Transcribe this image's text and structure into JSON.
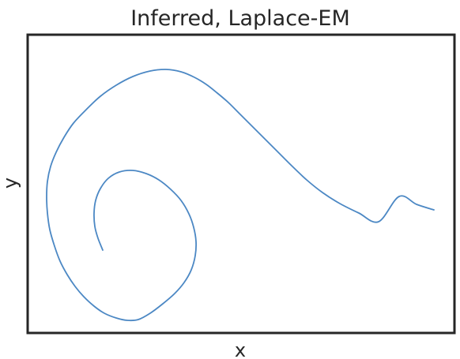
{
  "chart_data": {
    "type": "line",
    "title": "Inferred, Laplace-EM",
    "xlabel": "x",
    "ylabel": "y",
    "xlim": [
      0,
      540
    ],
    "ylim": [
      0,
      378
    ],
    "grid": false,
    "legend": false,
    "colors": {
      "line": "#4c88c4",
      "frame": "#262626",
      "background": "#ffffff"
    },
    "series": [
      {
        "x": [
          95,
          89,
          85,
          84,
          86,
          92,
          102,
          116,
          133,
          150,
          166,
          181,
          194,
          204,
          210,
          213,
          212,
          207,
          198,
          186,
          171,
          155,
          140,
          126,
          112,
          97,
          84,
          71,
          60,
          50,
          41,
          34,
          28,
          25,
          24,
          25,
          29,
          36,
          46,
          58,
          74,
          92,
          112,
          133,
          155,
          175,
          194,
          211,
          226,
          240,
          254,
          268,
          283,
          299,
          316,
          334,
          353,
          373,
          395,
          419,
          444,
          470,
          492,
          514
        ],
        "y": [
          105,
          120,
          135,
          152,
          168,
          183,
          196,
          204,
          206,
          202,
          194,
          182,
          168,
          151,
          134,
          116,
          98,
          80,
          64,
          50,
          37,
          25,
          17,
          16,
          19,
          25,
          34,
          46,
          59,
          74,
          91,
          110,
          131,
          152,
          172,
          192,
          211,
          229,
          248,
          266,
          283,
          300,
          314,
          325,
          332,
          334,
          331,
          324,
          315,
          304,
          292,
          278,
          263,
          247,
          230,
          212,
          194,
          178,
          164,
          152,
          141,
          173,
          163,
          156
        ]
      }
    ]
  }
}
